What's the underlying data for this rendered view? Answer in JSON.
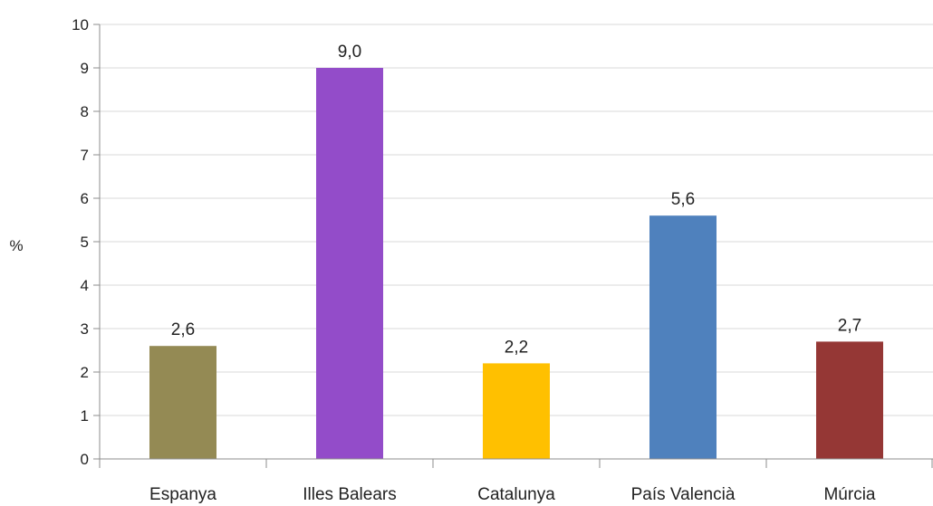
{
  "chart_data": {
    "type": "bar",
    "ylabel": "%",
    "ylim": [
      0,
      10
    ],
    "yticks": [
      "0",
      "1",
      "2",
      "3",
      "4",
      "5",
      "6",
      "7",
      "8",
      "9",
      "10"
    ],
    "grid": true,
    "legend": "none",
    "categories": [
      "Espanya",
      "Illes Balears",
      "Catalunya",
      "País Valencià",
      "Múrcia"
    ],
    "values": [
      2.6,
      9.0,
      2.2,
      5.6,
      2.7
    ],
    "value_labels": [
      "2,6",
      "9,0",
      "2,2",
      "5,6",
      "2,7"
    ],
    "colors": [
      "#948A54",
      "#934CC9",
      "#FFC000",
      "#4F81BD",
      "#953735"
    ]
  }
}
